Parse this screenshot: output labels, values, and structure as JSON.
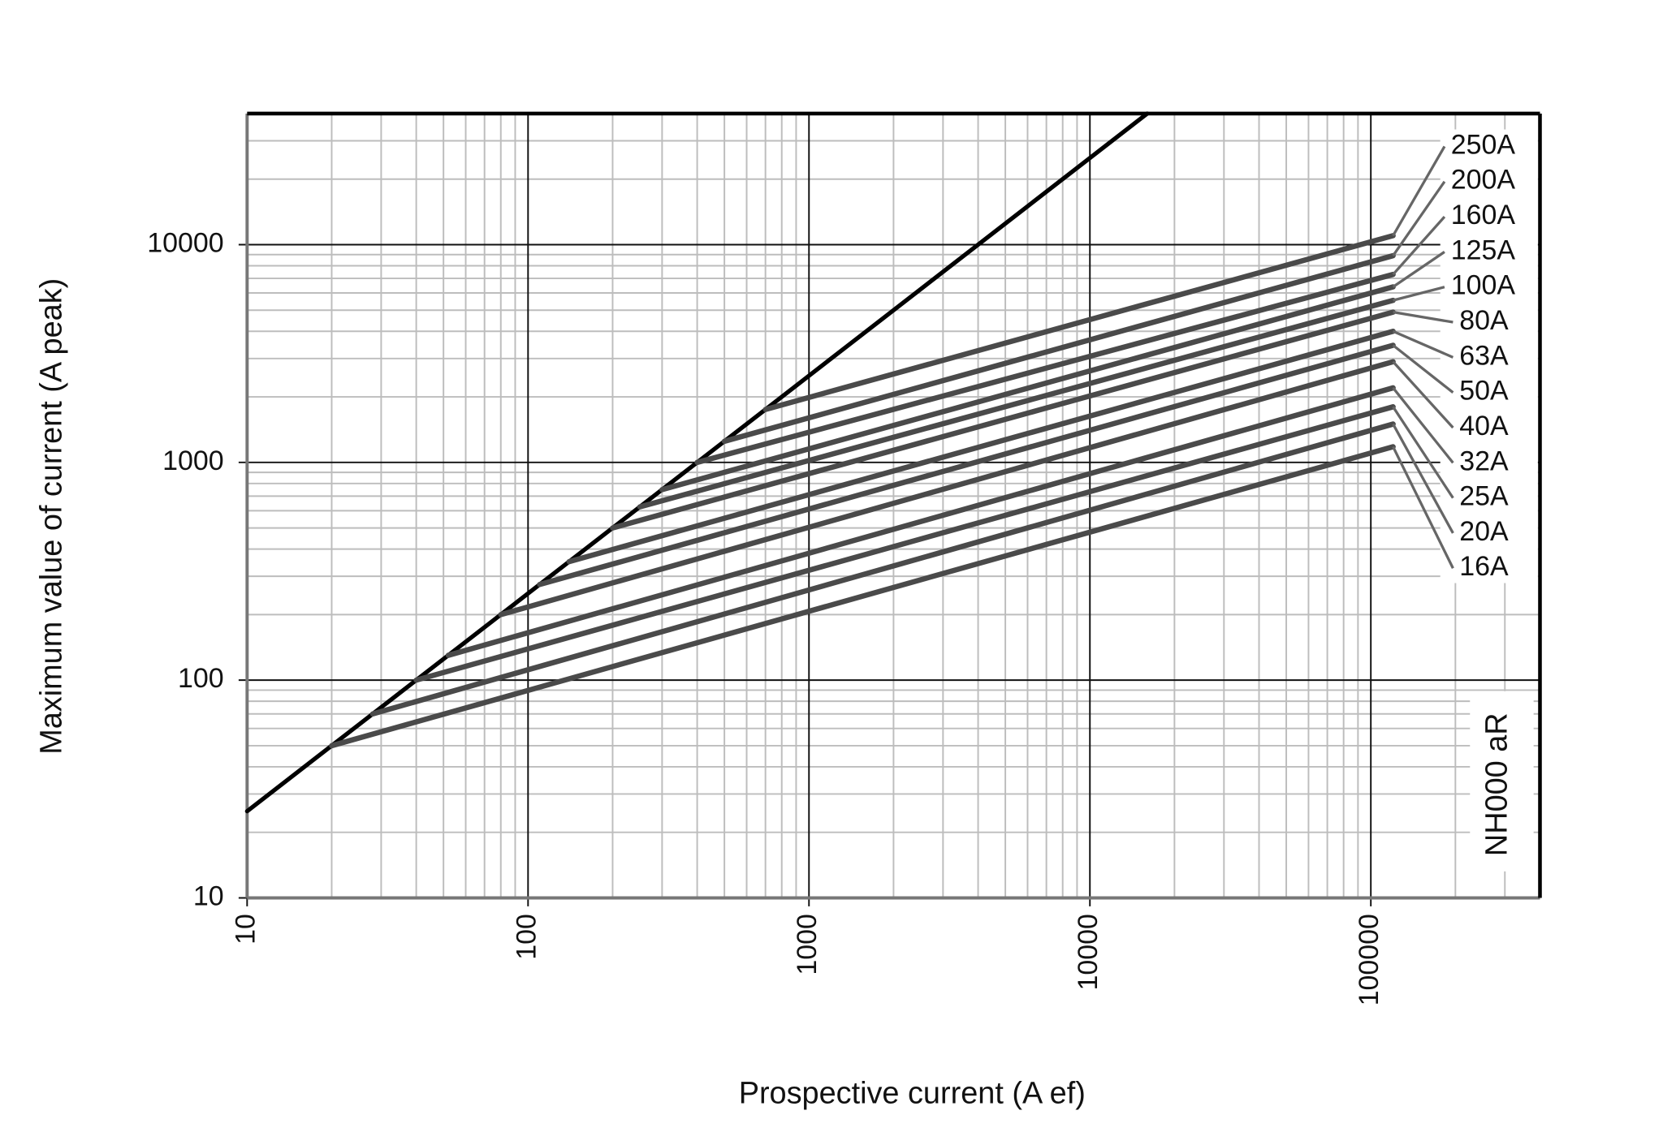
{
  "chart_data": {
    "type": "line",
    "xlabel": "Prospective current (A ef)",
    "ylabel": "Maximum value of current (A peak)",
    "annotation": "NH000 aR",
    "log_x": true,
    "log_y": true,
    "grid": true,
    "xlim": [
      10,
      400000
    ],
    "ylim": [
      10,
      40000
    ],
    "xticks": [
      10,
      100,
      1000,
      10000,
      100000
    ],
    "yticks": [
      10,
      100,
      1000,
      10000
    ],
    "series": [
      {
        "color": "#000000",
        "x": [
          10,
          16000
        ],
        "y": [
          25,
          40000
        ]
      },
      {
        "name": "250A",
        "color": "#4a4a4a",
        "x": [
          700,
          120000
        ],
        "y": [
          1750,
          11000
        ]
      },
      {
        "name": "200A",
        "color": "#4a4a4a",
        "x": [
          500,
          120000
        ],
        "y": [
          1250,
          8900
        ]
      },
      {
        "name": "160A",
        "color": "#4a4a4a",
        "x": [
          400,
          120000
        ],
        "y": [
          1000,
          7300
        ]
      },
      {
        "name": "125A",
        "color": "#4a4a4a",
        "x": [
          300,
          120000
        ],
        "y": [
          750,
          6400
        ]
      },
      {
        "name": "100A",
        "color": "#4a4a4a",
        "x": [
          250,
          120000
        ],
        "y": [
          625,
          5550
        ]
      },
      {
        "name": "80A",
        "color": "#4a4a4a",
        "x": [
          200,
          120000
        ],
        "y": [
          500,
          4900
        ]
      },
      {
        "name": "63A",
        "color": "#4a4a4a",
        "x": [
          140,
          120000
        ],
        "y": [
          350,
          4000
        ]
      },
      {
        "name": "50A",
        "color": "#4a4a4a",
        "x": [
          110,
          120000
        ],
        "y": [
          275,
          3450
        ]
      },
      {
        "name": "40A",
        "color": "#4a4a4a",
        "x": [
          80,
          120000
        ],
        "y": [
          200,
          2900
        ]
      },
      {
        "name": "32A",
        "color": "#4a4a4a",
        "x": [
          52,
          120000
        ],
        "y": [
          130,
          2200
        ]
      },
      {
        "name": "25A",
        "color": "#4a4a4a",
        "x": [
          40,
          120000
        ],
        "y": [
          100,
          1800
        ]
      },
      {
        "name": "20A",
        "color": "#4a4a4a",
        "x": [
          28,
          120000
        ],
        "y": [
          70,
          1500
        ]
      },
      {
        "name": "16A",
        "color": "#4a4a4a",
        "x": [
          20,
          120000
        ],
        "y": [
          50,
          1180
        ]
      }
    ]
  }
}
